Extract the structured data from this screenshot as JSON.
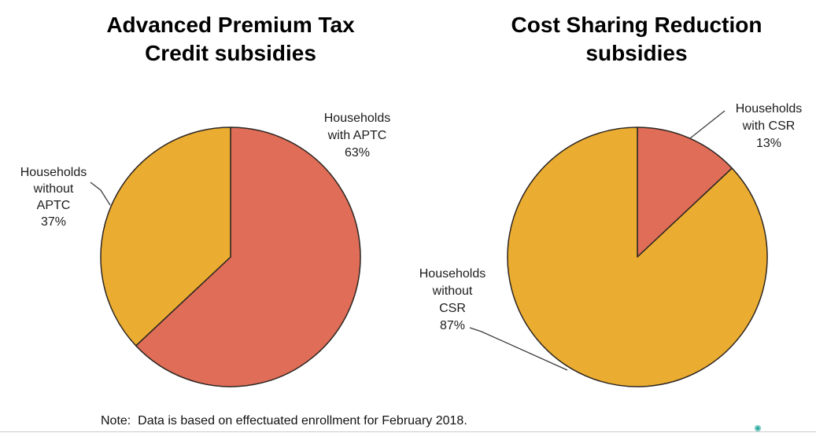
{
  "page": {
    "background": "#ffffff"
  },
  "chart_data": [
    {
      "type": "pie",
      "title": "Advanced Premium Tax Credit subsidies",
      "title_display": "Advanced Premium Tax\nCredit subsidies",
      "start_angle": "12 o'clock",
      "direction": "clockwise",
      "outline_color": "#2d2622",
      "slices": [
        {
          "id": "with-aptc",
          "label": "Households with APTC",
          "value": 63,
          "color": "#df6d57"
        },
        {
          "id": "without-aptc",
          "label": "Households without APTC",
          "value": 37,
          "color": "#ebad31"
        }
      ],
      "callouts": [
        {
          "id": "with-aptc",
          "text": "Households\nwith APTC\n63%"
        },
        {
          "id": "without-aptc",
          "text": "Households\nwithout\nAPTC\n37%"
        }
      ]
    },
    {
      "type": "pie",
      "title": "Cost Sharing Reduction subsidies",
      "title_display": "Cost Sharing Reduction\nsubsidies",
      "start_angle": "12 o'clock",
      "direction": "clockwise",
      "outline_color": "#2d2622",
      "slices": [
        {
          "id": "with-csr",
          "label": "Households with CSR",
          "value": 13,
          "color": "#df6d57"
        },
        {
          "id": "without-csr",
          "label": "Households without CSR",
          "value": 87,
          "color": "#ebad31"
        }
      ],
      "callouts": [
        {
          "id": "with-csr",
          "text": "Households\nwith CSR\n13%"
        },
        {
          "id": "without-csr",
          "text": "Households\nwithout\nCSR\n87%"
        }
      ]
    }
  ],
  "note": {
    "text": "Note:  Data is based on effectuated enrollment for February 2018."
  },
  "footer": {
    "divider_color": "#cccccc",
    "dot_color": "#2fa89d"
  }
}
